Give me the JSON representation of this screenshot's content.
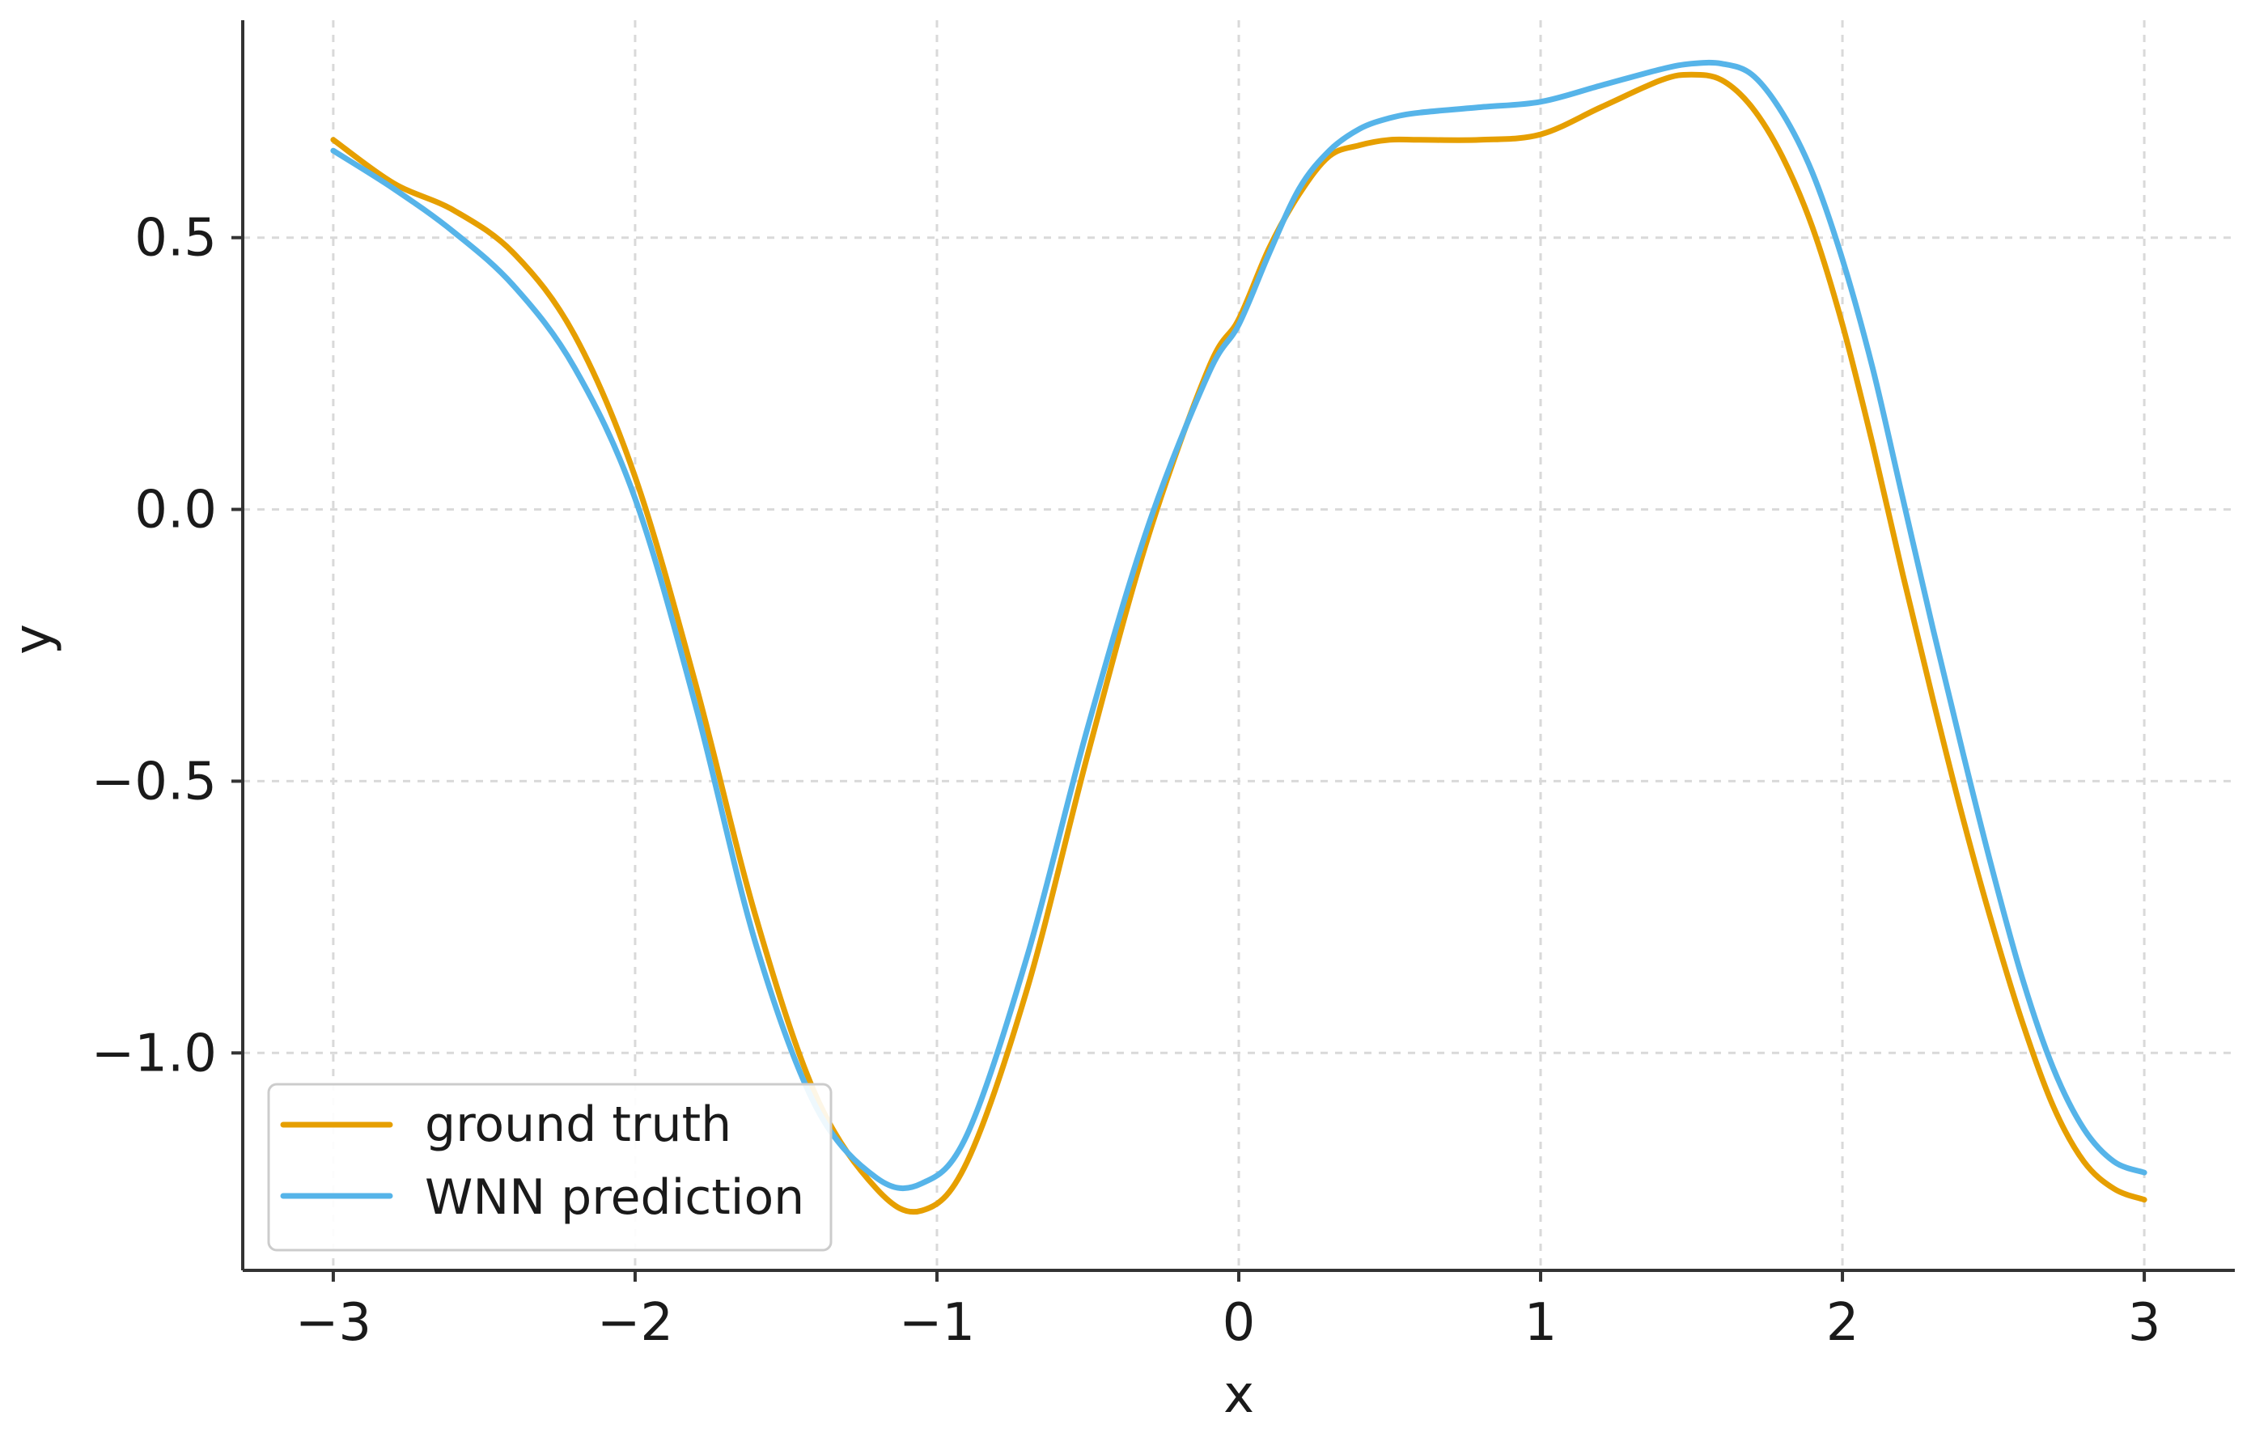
{
  "chart_data": {
    "type": "line",
    "title": "",
    "xlabel": "x",
    "ylabel": "y",
    "xlim": [
      -3.3,
      3.3
    ],
    "ylim": [
      -1.4,
      0.9
    ],
    "xticks": [
      -3,
      -2,
      -1,
      0,
      1,
      2,
      3
    ],
    "xtick_labels": [
      "−3",
      "−2",
      "−1",
      "0",
      "1",
      "2",
      "3"
    ],
    "yticks": [
      0.5,
      0.0,
      -0.5,
      -1.0
    ],
    "ytick_labels": [
      "0.5",
      "0.0",
      "−0.5",
      "−1.0"
    ],
    "grid": true,
    "legend_position": "lower-left",
    "series": [
      {
        "name": "ground truth",
        "color": "#E69F00",
        "x": [
          -3.0,
          -2.8,
          -2.6,
          -2.4,
          -2.2,
          -2.0,
          -1.8,
          -1.6,
          -1.4,
          -1.2,
          -1.05,
          -0.9,
          -0.7,
          -0.5,
          -0.3,
          -0.1,
          0.0,
          0.1,
          0.2,
          0.3,
          0.4,
          0.5,
          0.6,
          0.8,
          1.0,
          1.2,
          1.4,
          1.5,
          1.6,
          1.7,
          1.8,
          1.9,
          2.0,
          2.1,
          2.2,
          2.3,
          2.4,
          2.5,
          2.6,
          2.7,
          2.8,
          2.9,
          3.0
        ],
        "y": [
          0.68,
          0.6,
          0.55,
          0.47,
          0.32,
          0.06,
          -0.32,
          -0.75,
          -1.08,
          -1.25,
          -1.29,
          -1.2,
          -0.88,
          -0.45,
          -0.05,
          0.26,
          0.35,
          0.48,
          0.58,
          0.65,
          0.67,
          0.68,
          0.68,
          0.68,
          0.69,
          0.74,
          0.79,
          0.8,
          0.79,
          0.74,
          0.65,
          0.52,
          0.34,
          0.12,
          -0.12,
          -0.35,
          -0.57,
          -0.77,
          -0.95,
          -1.1,
          -1.2,
          -1.25,
          -1.27
        ]
      },
      {
        "name": "WNN prediction",
        "color": "#56B4E9",
        "x": [
          -3.0,
          -2.8,
          -2.6,
          -2.4,
          -2.2,
          -2.0,
          -1.8,
          -1.6,
          -1.4,
          -1.2,
          -1.05,
          -0.9,
          -0.7,
          -0.5,
          -0.3,
          -0.1,
          0.0,
          0.1,
          0.2,
          0.3,
          0.4,
          0.5,
          0.6,
          0.8,
          1.0,
          1.2,
          1.4,
          1.5,
          1.6,
          1.7,
          1.8,
          1.9,
          2.0,
          2.1,
          2.2,
          2.3,
          2.4,
          2.5,
          2.6,
          2.7,
          2.8,
          2.9,
          3.0
        ],
        "y": [
          0.66,
          0.59,
          0.51,
          0.41,
          0.26,
          0.02,
          -0.36,
          -0.8,
          -1.1,
          -1.23,
          -1.24,
          -1.15,
          -0.82,
          -0.4,
          -0.03,
          0.25,
          0.34,
          0.47,
          0.59,
          0.66,
          0.7,
          0.72,
          0.73,
          0.74,
          0.75,
          0.78,
          0.81,
          0.82,
          0.82,
          0.8,
          0.73,
          0.62,
          0.46,
          0.26,
          0.02,
          -0.22,
          -0.45,
          -0.67,
          -0.87,
          -1.03,
          -1.14,
          -1.2,
          -1.22
        ]
      }
    ]
  }
}
